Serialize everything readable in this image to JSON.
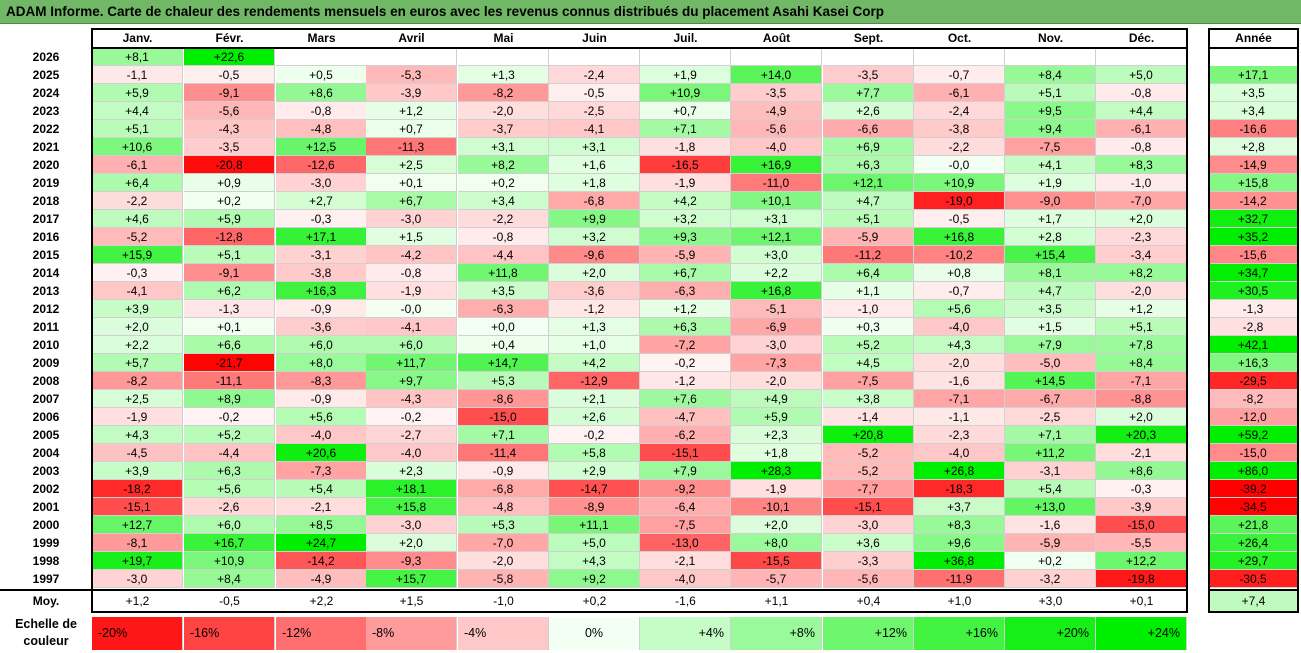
{
  "title": "ADAM Informe. Carte de chaleur des rendements mensuels en euros avec les revenus connus distribués du placement Asahi Kasei Corp",
  "colors": {
    "title_bg": "#70b865",
    "neg_max": "#ff0000",
    "pos_max": "#00ee00",
    "neutral": "#ffffff"
  },
  "chart_data": {
    "type": "heatmap",
    "title": "ADAM Informe. Carte de chaleur des rendements mensuels en euros avec les revenus connus distribués du placement Asahi Kasei Corp",
    "columns": [
      "Janv.",
      "Févr.",
      "Mars",
      "Avril",
      "Mai",
      "Juin",
      "Juil.",
      "Août",
      "Sept.",
      "Oct.",
      "Nov.",
      "Déc."
    ],
    "year_header": "Année",
    "rows": [
      {
        "year": "2026",
        "values": [
          "+8,1",
          "+22,6",
          "",
          "",
          "",
          "",
          "",
          "",
          "",
          "",
          "",
          ""
        ],
        "annual": ""
      },
      {
        "year": "2025",
        "values": [
          "-1,1",
          "-0,5",
          "+0,5",
          "-5,3",
          "+1,3",
          "-2,4",
          "+1,9",
          "+14,0",
          "-3,5",
          "-0,7",
          "+8,4",
          "+5,0"
        ],
        "annual": "+17,1"
      },
      {
        "year": "2024",
        "values": [
          "+5,9",
          "-9,1",
          "+8,6",
          "-3,9",
          "-8,2",
          "-0,5",
          "+10,9",
          "-3,5",
          "+7,7",
          "-6,1",
          "+5,1",
          "-0,8"
        ],
        "annual": "+3,5"
      },
      {
        "year": "2023",
        "values": [
          "+4,4",
          "-5,6",
          "-0,8",
          "+1,2",
          "-2,0",
          "-2,5",
          "+0,7",
          "-4,9",
          "+2,6",
          "-2,4",
          "+9,5",
          "+4,4"
        ],
        "annual": "+3,4"
      },
      {
        "year": "2022",
        "values": [
          "+5,1",
          "-4,3",
          "-4,8",
          "+0,7",
          "-3,7",
          "-4,1",
          "+7,1",
          "-5,6",
          "-6,6",
          "-3,8",
          "+9,4",
          "-6,1"
        ],
        "annual": "-16,6"
      },
      {
        "year": "2021",
        "values": [
          "+10,6",
          "-3,5",
          "+12,5",
          "-11,3",
          "+3,1",
          "+3,1",
          "-1,8",
          "-4,0",
          "+6,9",
          "-2,2",
          "-7,5",
          "-0,8"
        ],
        "annual": "+2,8"
      },
      {
        "year": "2020",
        "values": [
          "-6,1",
          "-20,8",
          "-12,6",
          "+2,5",
          "+8,2",
          "+1,6",
          "-16,5",
          "+16,9",
          "+6,3",
          "-0,0",
          "+4,1",
          "+8,3"
        ],
        "annual": "-14,9"
      },
      {
        "year": "2019",
        "values": [
          "+6,4",
          "+0,9",
          "-3,0",
          "+0,1",
          "+0,2",
          "+1,8",
          "-1,9",
          "-11,0",
          "+12,1",
          "+10,9",
          "+1,9",
          "-1,0"
        ],
        "annual": "+15,8"
      },
      {
        "year": "2018",
        "values": [
          "-2,2",
          "+0,2",
          "+2,7",
          "+6,7",
          "+3,4",
          "-6,8",
          "+4,2",
          "+10,1",
          "+4,7",
          "-19,0",
          "-9,0",
          "-7,0"
        ],
        "annual": "-14,2"
      },
      {
        "year": "2017",
        "values": [
          "+4,6",
          "+5,9",
          "-0,3",
          "-3,0",
          "-2,2",
          "+9,9",
          "+3,2",
          "+3,1",
          "+5,1",
          "-0,5",
          "+1,7",
          "+2,0"
        ],
        "annual": "+32,7"
      },
      {
        "year": "2016",
        "values": [
          "-5,2",
          "-12,8",
          "+17,1",
          "+1,5",
          "-0,8",
          "+3,2",
          "+9,3",
          "+12,1",
          "-5,9",
          "+16,8",
          "+2,8",
          "-2,3"
        ],
        "annual": "+35,2"
      },
      {
        "year": "2015",
        "values": [
          "+15,9",
          "+5,1",
          "-3,1",
          "-4,2",
          "-4,4",
          "-9,6",
          "-5,9",
          "+3,0",
          "-11,2",
          "-10,2",
          "+15,4",
          "-3,4"
        ],
        "annual": "-15,6"
      },
      {
        "year": "2014",
        "values": [
          "-0,3",
          "-9,1",
          "-3,8",
          "-0,8",
          "+11,8",
          "+2,0",
          "+6,7",
          "+2,2",
          "+6,4",
          "+0,8",
          "+8,1",
          "+8,2"
        ],
        "annual": "+34,7"
      },
      {
        "year": "2013",
        "values": [
          "-4,1",
          "+6,2",
          "+16,3",
          "-1,9",
          "+3,5",
          "-3,6",
          "-6,3",
          "+16,8",
          "+1,1",
          "-0,7",
          "+4,7",
          "-2,0"
        ],
        "annual": "+30,5"
      },
      {
        "year": "2012",
        "values": [
          "+3,9",
          "-1,3",
          "-0,9",
          "-0,0",
          "-6,3",
          "-1,2",
          "+1,2",
          "-5,1",
          "-1,0",
          "+5,6",
          "+3,5",
          "+1,2"
        ],
        "annual": "-1,3"
      },
      {
        "year": "2011",
        "values": [
          "+2,0",
          "+0,1",
          "-3,6",
          "-4,1",
          "+0,0",
          "+1,3",
          "+6,3",
          "-6,9",
          "+0,3",
          "-4,0",
          "+1,5",
          "+5,1"
        ],
        "annual": "-2,8"
      },
      {
        "year": "2010",
        "values": [
          "+2,2",
          "+6,6",
          "+6,0",
          "+6,0",
          "+0,4",
          "+1,0",
          "-7,2",
          "-3,0",
          "+5,2",
          "+4,3",
          "+7,9",
          "+7,8"
        ],
        "annual": "+42,1"
      },
      {
        "year": "2009",
        "values": [
          "+5,7",
          "-21,7",
          "+8,0",
          "+11,7",
          "+14,7",
          "+4,2",
          "-0,2",
          "-7,3",
          "+4,5",
          "-2,0",
          "-5,0",
          "+8,4"
        ],
        "annual": "+16,3"
      },
      {
        "year": "2008",
        "values": [
          "-8,2",
          "-11,1",
          "-8,3",
          "+9,7",
          "+5,3",
          "-12,9",
          "-1,2",
          "-2,0",
          "-7,5",
          "-1,6",
          "+14,5",
          "-7,1"
        ],
        "annual": "-29,5"
      },
      {
        "year": "2007",
        "values": [
          "+2,5",
          "+8,9",
          "-0,9",
          "-4,3",
          "-8,6",
          "+2,1",
          "+7,6",
          "+4,9",
          "+3,8",
          "-7,1",
          "-6,7",
          "-8,8"
        ],
        "annual": "-8,2"
      },
      {
        "year": "2006",
        "values": [
          "-1,9",
          "-0,2",
          "+5,6",
          "-0,2",
          "-15,0",
          "+2,6",
          "-4,7",
          "+5,9",
          "-1,4",
          "-1,1",
          "-2,5",
          "+2,0"
        ],
        "annual": "-12,0"
      },
      {
        "year": "2005",
        "values": [
          "+4,3",
          "+5,2",
          "-4,0",
          "-2,7",
          "+7,1",
          "-0,2",
          "-6,2",
          "+2,3",
          "+20,8",
          "-2,3",
          "+7,1",
          "+20,3"
        ],
        "annual": "+59,2"
      },
      {
        "year": "2004",
        "values": [
          "-4,5",
          "-4,4",
          "+20,6",
          "-4,0",
          "-11,4",
          "+5,8",
          "-15,1",
          "+1,8",
          "-5,2",
          "-4,0",
          "+11,2",
          "-2,1"
        ],
        "annual": "-15,0"
      },
      {
        "year": "2003",
        "values": [
          "+3,9",
          "+6,3",
          "-7,3",
          "+2,3",
          "-0,9",
          "+2,9",
          "+7,9",
          "+28,3",
          "-5,2",
          "+26,8",
          "-3,1",
          "+8,6"
        ],
        "annual": "+86,0"
      },
      {
        "year": "2002",
        "values": [
          "-18,2",
          "+5,6",
          "+5,4",
          "+18,1",
          "-6,8",
          "-14,7",
          "-9,2",
          "-1,9",
          "-7,7",
          "-18,3",
          "+5,4",
          "-0,3"
        ],
        "annual": "-39,2"
      },
      {
        "year": "2001",
        "values": [
          "-15,1",
          "-2,6",
          "-2,1",
          "+15,8",
          "-4,8",
          "-8,9",
          "-6,4",
          "-10,1",
          "-15,1",
          "+3,7",
          "+13,0",
          "-3,9"
        ],
        "annual": "-34,5"
      },
      {
        "year": "2000",
        "values": [
          "+12,7",
          "+6,0",
          "+8,5",
          "-3,0",
          "+5,3",
          "+11,1",
          "-7,5",
          "+2,0",
          "-3,0",
          "+8,3",
          "-1,6",
          "-15,0"
        ],
        "annual": "+21,8"
      },
      {
        "year": "1999",
        "values": [
          "-8,1",
          "+16,7",
          "+24,7",
          "+2,0",
          "-7,0",
          "+5,0",
          "-13,0",
          "+8,0",
          "+3,6",
          "+9,6",
          "-5,9",
          "-5,5"
        ],
        "annual": "+26,4"
      },
      {
        "year": "1998",
        "values": [
          "+19,7",
          "+10,9",
          "-14,2",
          "-9,3",
          "-2,0",
          "+4,3",
          "-2,1",
          "-15,5",
          "-3,3",
          "+36,8",
          "+0,2",
          "+12,2"
        ],
        "annual": "+29,7"
      },
      {
        "year": "1997",
        "values": [
          "-3,0",
          "+8,4",
          "-4,9",
          "+15,7",
          "-5,8",
          "+9,2",
          "-4,0",
          "-5,7",
          "-5,6",
          "-11,9",
          "-3,2",
          "-19,8"
        ],
        "annual": "-30,5"
      }
    ],
    "average": {
      "label": "Moy.",
      "values": [
        "+1,2",
        "-0,5",
        "+2,2",
        "+1,5",
        "-1,0",
        "+0,2",
        "-1,6",
        "+1,1",
        "+0,4",
        "+1,0",
        "+3,0",
        "+0,1"
      ],
      "annual": "+7,4"
    },
    "scale": {
      "label": "Echelle de couleur",
      "entries": [
        {
          "text": "-20%",
          "value": -20
        },
        {
          "text": "-16%",
          "value": -16
        },
        {
          "text": "-12%",
          "value": -12
        },
        {
          "text": "-8%",
          "value": -8
        },
        {
          "text": "-4%",
          "value": -4
        },
        {
          "text": "0%",
          "value": 0
        },
        {
          "text": "+4%",
          "value": 4
        },
        {
          "text": "+8%",
          "value": 8
        },
        {
          "text": "+12%",
          "value": 12
        },
        {
          "text": "+16%",
          "value": 16
        },
        {
          "text": "+20%",
          "value": 20
        },
        {
          "text": "+24%",
          "value": 24
        }
      ]
    }
  }
}
